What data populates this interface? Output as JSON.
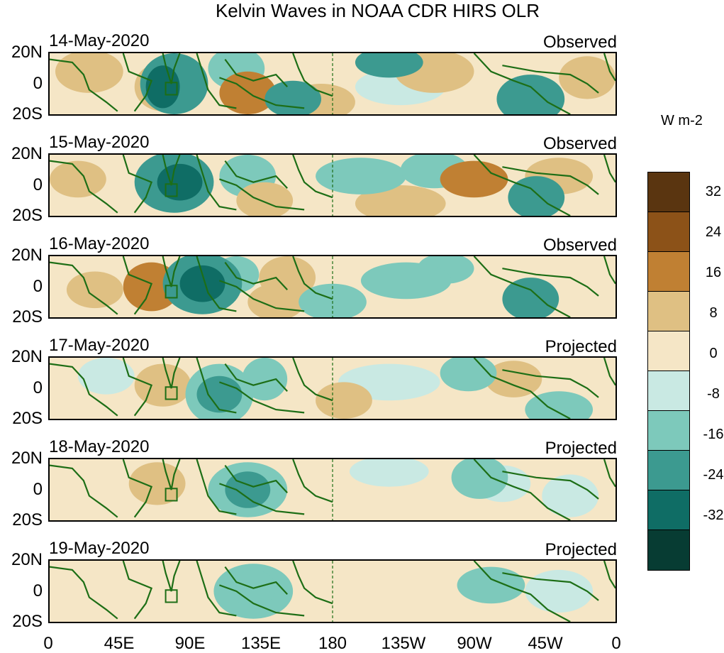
{
  "title": "Kelvin Waves in NOAA CDR HIRS OLR",
  "panels": [
    {
      "date": "14-May-2020",
      "status": "Observed"
    },
    {
      "date": "15-May-2020",
      "status": "Observed"
    },
    {
      "date": "16-May-2020",
      "status": "Observed"
    },
    {
      "date": "17-May-2020",
      "status": "Projected"
    },
    {
      "date": "18-May-2020",
      "status": "Projected"
    },
    {
      "date": "19-May-2020",
      "status": "Projected"
    }
  ],
  "lat_labels": {
    "north": "20N",
    "equator": "0",
    "south": "20S"
  },
  "lon_labels": [
    "0",
    "45E",
    "90E",
    "135E",
    "180",
    "135W",
    "90W",
    "45W",
    "0"
  ],
  "colorbar": {
    "units": "W m-2",
    "levels": [
      "32",
      "24",
      "16",
      "8",
      "0",
      "-8",
      "-16",
      "-24",
      "-32"
    ],
    "colors": [
      "#5a3510",
      "#8c5218",
      "#c08033",
      "#dfc083",
      "#f5e6c6",
      "#c9e9e3",
      "#7dc9bb",
      "#3c9a90",
      "#0f6d65",
      "#073c33"
    ]
  }
}
